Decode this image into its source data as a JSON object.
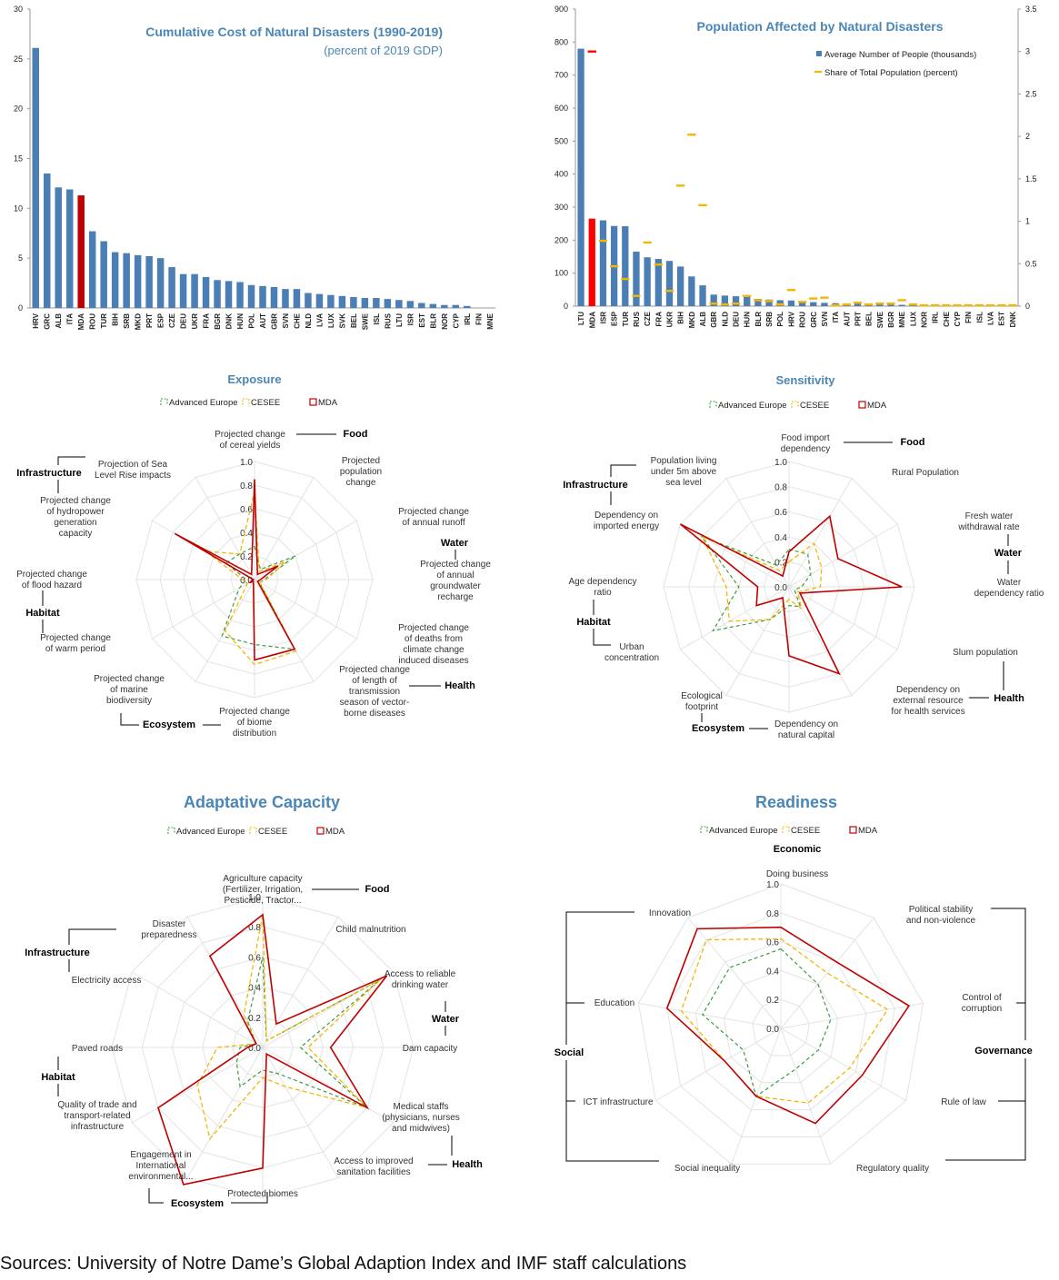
{
  "chart_data": [
    {
      "type": "bar",
      "title": "Cumulative Cost of Natural Disasters (1990-2019)",
      "subtitle": "(percent of 2019 GDP)",
      "ylim": [
        0,
        30
      ],
      "yticks": [
        0,
        5,
        10,
        15,
        20,
        25,
        30
      ],
      "categories": [
        "HRV",
        "GRC",
        "ALB",
        "ITA",
        "MDA",
        "ROU",
        "TUR",
        "BIH",
        "SRB",
        "MKD",
        "PRT",
        "ESP",
        "CZE",
        "DEU",
        "UKR",
        "FRA",
        "BGR",
        "DNK",
        "HUN",
        "POL",
        "AUT",
        "GBR",
        "SVN",
        "CHE",
        "NLD",
        "LVA",
        "LUX",
        "SVK",
        "BEL",
        "SWE",
        "ISL",
        "RUS",
        "LTU",
        "ISR",
        "EST",
        "BLR",
        "NOR",
        "CYP",
        "IRL",
        "FIN",
        "MNE"
      ],
      "values": [
        26.1,
        13.5,
        12.1,
        11.9,
        11.3,
        7.7,
        6.7,
        5.6,
        5.5,
        5.3,
        5.2,
        5.0,
        4.1,
        3.4,
        3.4,
        3.1,
        2.8,
        2.7,
        2.6,
        2.3,
        2.2,
        2.1,
        1.9,
        1.9,
        1.5,
        1.4,
        1.3,
        1.2,
        1.1,
        1.0,
        1.0,
        0.9,
        0.8,
        0.7,
        0.5,
        0.4,
        0.3,
        0.3,
        0.2,
        0.0,
        0.0
      ],
      "highlight": "MDA",
      "colors": {
        "bar": "#4a7eb4",
        "highlight": "#c00000"
      }
    },
    {
      "type": "bar",
      "title": "Population Affected by Natural Disasters",
      "ylim": [
        0,
        900
      ],
      "yticks": [
        0,
        100,
        200,
        300,
        400,
        500,
        600,
        700,
        800,
        900
      ],
      "y2lim": [
        0,
        3.5
      ],
      "y2ticks": [
        "0",
        "0.5",
        "1",
        "1.5",
        "2",
        "2.5",
        "3",
        "3.5"
      ],
      "categories": [
        "LTU",
        "MDA",
        "ISR",
        "ESP",
        "TUR",
        "RUS",
        "CZE",
        "FRA",
        "UKR",
        "BIH",
        "MKD",
        "ALB",
        "GBR",
        "NLD",
        "DEU",
        "HUN",
        "BLR",
        "SRB",
        "POL",
        "HRV",
        "ROU",
        "GRC",
        "SVN",
        "ITA",
        "AUT",
        "PRT",
        "BEL",
        "SWE",
        "BGR",
        "MNE",
        "LUX",
        "NOR",
        "IRL",
        "CHE",
        "CYP",
        "FIN",
        "ISL",
        "LVA",
        "EST",
        "DNK"
      ],
      "series": [
        {
          "name": "Average Number of People (thousands)",
          "values": [
            780,
            265,
            260,
            243,
            242,
            165,
            148,
            143,
            137,
            120,
            90,
            63,
            35,
            32,
            30,
            28,
            22,
            20,
            18,
            17,
            15,
            12,
            10,
            9,
            8,
            8,
            7,
            6,
            5,
            4,
            3,
            3,
            2,
            2,
            2,
            2,
            1,
            1,
            1,
            1
          ]
        },
        {
          "name": "Share of Total Population (percent)",
          "values": [
            null,
            3.0,
            0.77,
            0.47,
            0.32,
            0.12,
            0.75,
            0.49,
            0.18,
            1.42,
            2.02,
            1.19,
            0.03,
            0.02,
            0.03,
            0.12,
            0.07,
            0.06,
            0.02,
            0.19,
            0.05,
            0.09,
            0.1,
            0.01,
            0.02,
            0.04,
            0.02,
            0.03,
            0.03,
            0.07,
            0.02,
            0.01,
            0.01,
            0.01,
            0.01,
            0.01,
            0.01,
            0.01,
            0.01,
            0.01
          ]
        }
      ],
      "highlight": "MDA",
      "colors": {
        "bar": "#4a7eb4",
        "highlight": "#ff0000",
        "marker": "#f2b705"
      }
    },
    {
      "type": "radar",
      "title": "Exposure",
      "rlim": [
        0,
        1
      ],
      "rticks": [
        "0.0",
        "0.2",
        "0.4",
        "0.6",
        "0.8",
        "1.0"
      ],
      "axes": [
        "Projected change of cereal yields",
        "Projected population change",
        "Projected change of annual runoff",
        "Projected change of annual groundwater recharge",
        "Projected change of deaths from climate change induced diseases",
        "Projected change of length of transmission season of vector-borne diseases",
        "Projected change of biome distribution",
        "Projected change of marine biodiversity",
        "Projected change of warm period",
        "Projected change of flood hazard",
        "Projected change of hydropower generation capacity",
        "Projection of Sea Level Rise impacts"
      ],
      "groups": [
        "Food",
        "Water",
        "Health",
        "Ecosystem",
        "Habitat",
        "Infrastructure"
      ],
      "series": [
        {
          "name": "Advanced Europe",
          "values": [
            0.28,
            0.1,
            0.4,
            0.08,
            0.05,
            0.68,
            0.55,
            0.55,
            0.15,
            0.07,
            0.28,
            0.25
          ]
        },
        {
          "name": "CESEE",
          "values": [
            0.75,
            0.08,
            0.3,
            0.1,
            0.05,
            0.7,
            0.72,
            0.5,
            0.07,
            0.1,
            0.48,
            0.25
          ]
        },
        {
          "name": "MDA",
          "values": [
            0.85,
            0.05,
            0.23,
            0.05,
            0.03,
            0.68,
            0.68,
            0.02,
            0.04,
            0.01,
            0.78,
            0.05
          ]
        }
      ],
      "legend": "top",
      "colors": {
        "Advanced Europe": "#3f9b3f",
        "CESEE": "#f2b705",
        "MDA": "#c00000"
      }
    },
    {
      "type": "radar",
      "title": "Sensitivity",
      "rlim": [
        0,
        1
      ],
      "rticks": [
        "0.0",
        "0.2",
        "0.4",
        "0.6",
        "0.8",
        "1.0"
      ],
      "axes": [
        "Food import dependency",
        "Rural Population",
        "Fresh water withdrawal rate",
        "Water dependency ratio",
        "Slum population",
        "Dependency on external resource for health services",
        "Dependency on natural capital",
        "Ecological footprint",
        "Urban concentration",
        "Age dependency ratio",
        "Dependency on imported energy",
        "Population living under 5m above sea level"
      ],
      "groups": [
        "Food",
        "Water",
        "Health",
        "Ecosystem",
        "Habitat",
        "Infrastructure"
      ],
      "series": [
        {
          "name": "Advanced Europe",
          "values": [
            0.3,
            0.3,
            0.2,
            0.1,
            0.05,
            0.18,
            0.15,
            0.3,
            0.7,
            0.4,
            0.8,
            0.2
          ]
        },
        {
          "name": "CESEE",
          "values": [
            0.2,
            0.4,
            0.3,
            0.25,
            0.08,
            0.2,
            0.1,
            0.3,
            0.55,
            0.5,
            0.8,
            0.15
          ]
        },
        {
          "name": "MDA",
          "values": [
            0.28,
            0.65,
            0.45,
            0.9,
            0.1,
            0.8,
            0.55,
            0.1,
            0.3,
            0.25,
            1.0,
            0.1
          ]
        }
      ],
      "legend": "top",
      "colors": {
        "Advanced Europe": "#3f9b3f",
        "CESEE": "#f2b705",
        "MDA": "#c00000"
      }
    },
    {
      "type": "radar",
      "title": "Adaptative Capacity",
      "rlim": [
        0,
        1
      ],
      "rticks": [
        "0.0",
        "0.2",
        "0.4",
        "0.6",
        "0.8",
        "1.0"
      ],
      "axes": [
        "Agriculture capacity (Fertilizer, Irrigation, Pesticide, Tractor...",
        "Child malnutrition",
        "Access to reliable drinking water",
        "Dam capacity",
        "Medical staffs (physicians, nurses and midwives)",
        "Access to improved sanitation facilities",
        "Protected biomes",
        "Engagement in International environmental...",
        "Quality of trade and transport-related infrastructure",
        "Paved roads",
        "Electricity access",
        "Disaster preparedness"
      ],
      "groups": [
        "Food",
        "Water",
        "Health",
        "Ecosystem",
        "Habitat",
        "Infrastructure"
      ],
      "series": [
        {
          "name": "Advanced Europe",
          "values": [
            0.6,
            0.05,
            0.9,
            0.25,
            0.8,
            0.2,
            0.15,
            0.3,
            0.2,
            0.15,
            0.05,
            0.2
          ]
        },
        {
          "name": "CESEE",
          "values": [
            0.88,
            0.05,
            0.9,
            0.3,
            0.8,
            0.3,
            0.2,
            0.7,
            0.5,
            0.3,
            0.05,
            0.25
          ]
        },
        {
          "name": "MDA",
          "values": [
            0.88,
            0.18,
            0.95,
            0.45,
            0.8,
            0.05,
            0.8,
            1.05,
            0.8,
            0.1,
            0.05,
            0.7
          ]
        }
      ],
      "legend": "top",
      "colors": {
        "Advanced Europe": "#3f9b3f",
        "CESEE": "#f2b705",
        "MDA": "#c00000"
      }
    },
    {
      "type": "radar",
      "title": "Readiness",
      "rlim": [
        0,
        1
      ],
      "rticks": [
        "0.0",
        "0.2",
        "0.4",
        "0.6",
        "0.8",
        "1.0"
      ],
      "axes": [
        "Doing business",
        "Political stability and non-violence",
        "Control of corruption",
        "Rule of law",
        "Regulatory quality",
        "Social inequality",
        "ICT infrastructure",
        "Education",
        "Innovation"
      ],
      "groups": [
        "Economic",
        "Governance",
        "Social"
      ],
      "series": [
        {
          "name": "Advanced Europe",
          "values": [
            0.55,
            0.4,
            0.35,
            0.3,
            0.3,
            0.5,
            0.3,
            0.55,
            0.55
          ]
        },
        {
          "name": "CESEE",
          "values": [
            0.62,
            0.5,
            0.75,
            0.55,
            0.55,
            0.5,
            0.45,
            0.7,
            0.8
          ]
        },
        {
          "name": "MDA",
          "values": [
            0.7,
            0.6,
            0.9,
            0.65,
            0.7,
            0.5,
            0.45,
            0.8,
            0.9
          ]
        }
      ],
      "legend": "top",
      "colors": {
        "Advanced Europe": "#3f9b3f",
        "CESEE": "#f2b705",
        "MDA": "#c00000"
      }
    }
  ],
  "footer": {
    "source": "Sources: University of Notre Dame’s Global Adaption Index and IMF staff calculations"
  }
}
